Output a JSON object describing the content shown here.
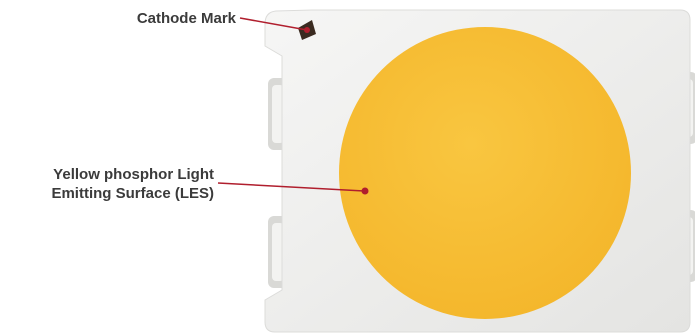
{
  "labels": {
    "cathode_mark": "Cathode Mark",
    "les_line1": "Yellow phosphor Light",
    "les_line2": "Emitting Surface (LES)"
  },
  "colors": {
    "phosphor": "#f7bd33",
    "leader_line": "#b01e2d",
    "package_body": "#efefee",
    "text": "#3b3b3b"
  }
}
